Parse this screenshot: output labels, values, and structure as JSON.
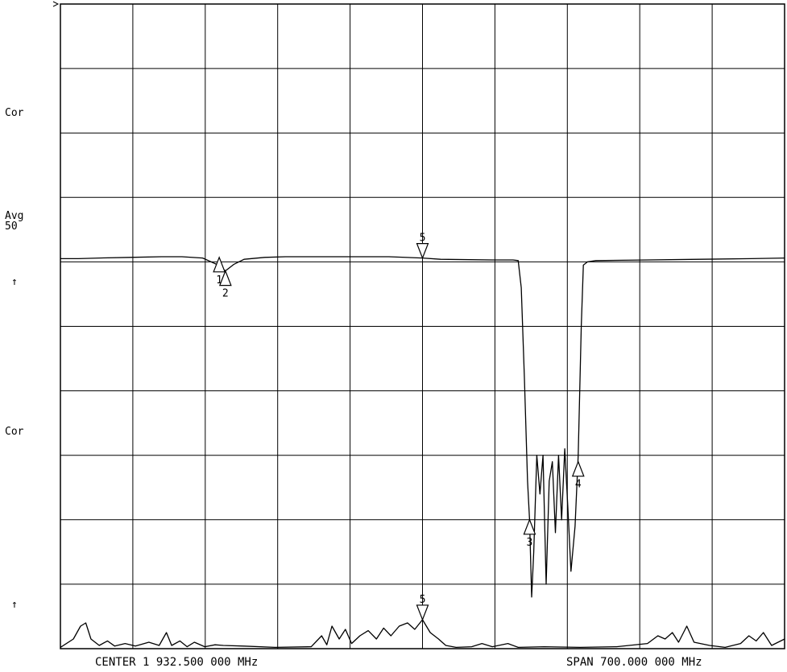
{
  "side_labels": {
    "cor_top": "Cor",
    "avg_title": "Avg",
    "avg_value": "50",
    "arrow_top": "↑",
    "cor_bottom": "Cor",
    "arrow_bottom": "↑"
  },
  "footer": {
    "center": "CENTER 1 932.500 000 MHz",
    "span": "SPAN 700.000 000 MHz"
  },
  "colors": {
    "trace": "#000000",
    "grid": "#000000",
    "background": "#ffffff"
  },
  "chart_data": [
    {
      "type": "line",
      "title": "",
      "grid": true,
      "x_range": [
        1582.5,
        2282.5
      ],
      "x_divisions": 10,
      "y_divisions": 10,
      "x_unit": "MHz",
      "series": [
        {
          "values": [
            [
              1582.5,
              6.05
            ],
            [
              1600,
              6.05
            ],
            [
              1620,
              6.06
            ],
            [
              1650,
              6.07
            ],
            [
              1680,
              6.08
            ],
            [
              1700,
              6.08
            ],
            [
              1720,
              6.06
            ],
            [
              1735,
              5.95
            ],
            [
              1742,
              5.86
            ],
            [
              1750,
              5.96
            ],
            [
              1760,
              6.04
            ],
            [
              1780,
              6.07
            ],
            [
              1800,
              6.08
            ],
            [
              1850,
              6.08
            ],
            [
              1900,
              6.08
            ],
            [
              1932.5,
              6.06
            ],
            [
              1950,
              6.04
            ],
            [
              2000,
              6.03
            ],
            [
              2020,
              6.03
            ],
            [
              2025,
              6.02
            ],
            [
              2028,
              5.6
            ],
            [
              2031,
              4.2
            ],
            [
              2034,
              2.6
            ],
            [
              2036,
              2.0
            ],
            [
              2038,
              0.8
            ],
            [
              2040,
              1.5
            ],
            [
              2043,
              3.0
            ],
            [
              2046,
              2.4
            ],
            [
              2049,
              3.0
            ],
            [
              2052,
              1.0
            ],
            [
              2055,
              2.6
            ],
            [
              2058,
              2.9
            ],
            [
              2061,
              1.8
            ],
            [
              2064,
              3.0
            ],
            [
              2067,
              2.0
            ],
            [
              2070,
              3.1
            ],
            [
              2073,
              2.2
            ],
            [
              2076,
              1.2
            ],
            [
              2080,
              1.9
            ],
            [
              2083,
              3.0
            ],
            [
              2086,
              5.0
            ],
            [
              2088,
              5.95
            ],
            [
              2092,
              6.0
            ],
            [
              2100,
              6.02
            ],
            [
              2150,
              6.03
            ],
            [
              2200,
              6.04
            ],
            [
              2250,
              6.05
            ],
            [
              2282.5,
              6.06
            ]
          ]
        },
        {
          "values": [
            [
              1582.5,
              0.02
            ],
            [
              1595,
              0.15
            ],
            [
              1602,
              0.35
            ],
            [
              1607,
              0.4
            ],
            [
              1612,
              0.15
            ],
            [
              1620,
              0.05
            ],
            [
              1628,
              0.12
            ],
            [
              1635,
              0.04
            ],
            [
              1645,
              0.08
            ],
            [
              1655,
              0.04
            ],
            [
              1668,
              0.1
            ],
            [
              1678,
              0.05
            ],
            [
              1685,
              0.25
            ],
            [
              1690,
              0.05
            ],
            [
              1698,
              0.12
            ],
            [
              1705,
              0.03
            ],
            [
              1712,
              0.1
            ],
            [
              1722,
              0.03
            ],
            [
              1732,
              0.06
            ],
            [
              1740,
              0.05
            ],
            [
              1760,
              0.04
            ],
            [
              1790,
              0.02
            ],
            [
              1825,
              0.03
            ],
            [
              1835,
              0.2
            ],
            [
              1840,
              0.06
            ],
            [
              1845,
              0.35
            ],
            [
              1852,
              0.15
            ],
            [
              1858,
              0.3
            ],
            [
              1864,
              0.08
            ],
            [
              1872,
              0.2
            ],
            [
              1880,
              0.28
            ],
            [
              1888,
              0.15
            ],
            [
              1895,
              0.32
            ],
            [
              1902,
              0.2
            ],
            [
              1910,
              0.35
            ],
            [
              1918,
              0.4
            ],
            [
              1925,
              0.3
            ],
            [
              1932.5,
              0.45
            ],
            [
              1940,
              0.25
            ],
            [
              1948,
              0.15
            ],
            [
              1955,
              0.05
            ],
            [
              1965,
              0.02
            ],
            [
              1980,
              0.03
            ],
            [
              1990,
              0.08
            ],
            [
              2000,
              0.03
            ],
            [
              2015,
              0.08
            ],
            [
              2025,
              0.02
            ],
            [
              2050,
              0.03
            ],
            [
              2085,
              0.02
            ],
            [
              2120,
              0.03
            ],
            [
              2150,
              0.08
            ],
            [
              2160,
              0.2
            ],
            [
              2167,
              0.15
            ],
            [
              2174,
              0.25
            ],
            [
              2180,
              0.1
            ],
            [
              2188,
              0.35
            ],
            [
              2195,
              0.1
            ],
            [
              2210,
              0.05
            ],
            [
              2225,
              0.02
            ],
            [
              2240,
              0.08
            ],
            [
              2248,
              0.2
            ],
            [
              2255,
              0.12
            ],
            [
              2262,
              0.25
            ],
            [
              2270,
              0.05
            ],
            [
              2282.5,
              0.15
            ]
          ]
        }
      ],
      "markers": [
        {
          "label": "1",
          "x": 1736,
          "y": 6.07,
          "direction": "up"
        },
        {
          "label": "2",
          "x": 1742,
          "y": 5.86,
          "direction": "up"
        },
        {
          "label": "3",
          "x": 2036,
          "y": 2.0,
          "direction": "up"
        },
        {
          "label": "4",
          "x": 2083,
          "y": 2.9,
          "direction": "up"
        },
        {
          "label": "5",
          "x": 1932.5,
          "y": 6.06,
          "direction": "down"
        },
        {
          "label": "5",
          "x": 1932.5,
          "y": 0.45,
          "direction": "down"
        }
      ]
    }
  ]
}
